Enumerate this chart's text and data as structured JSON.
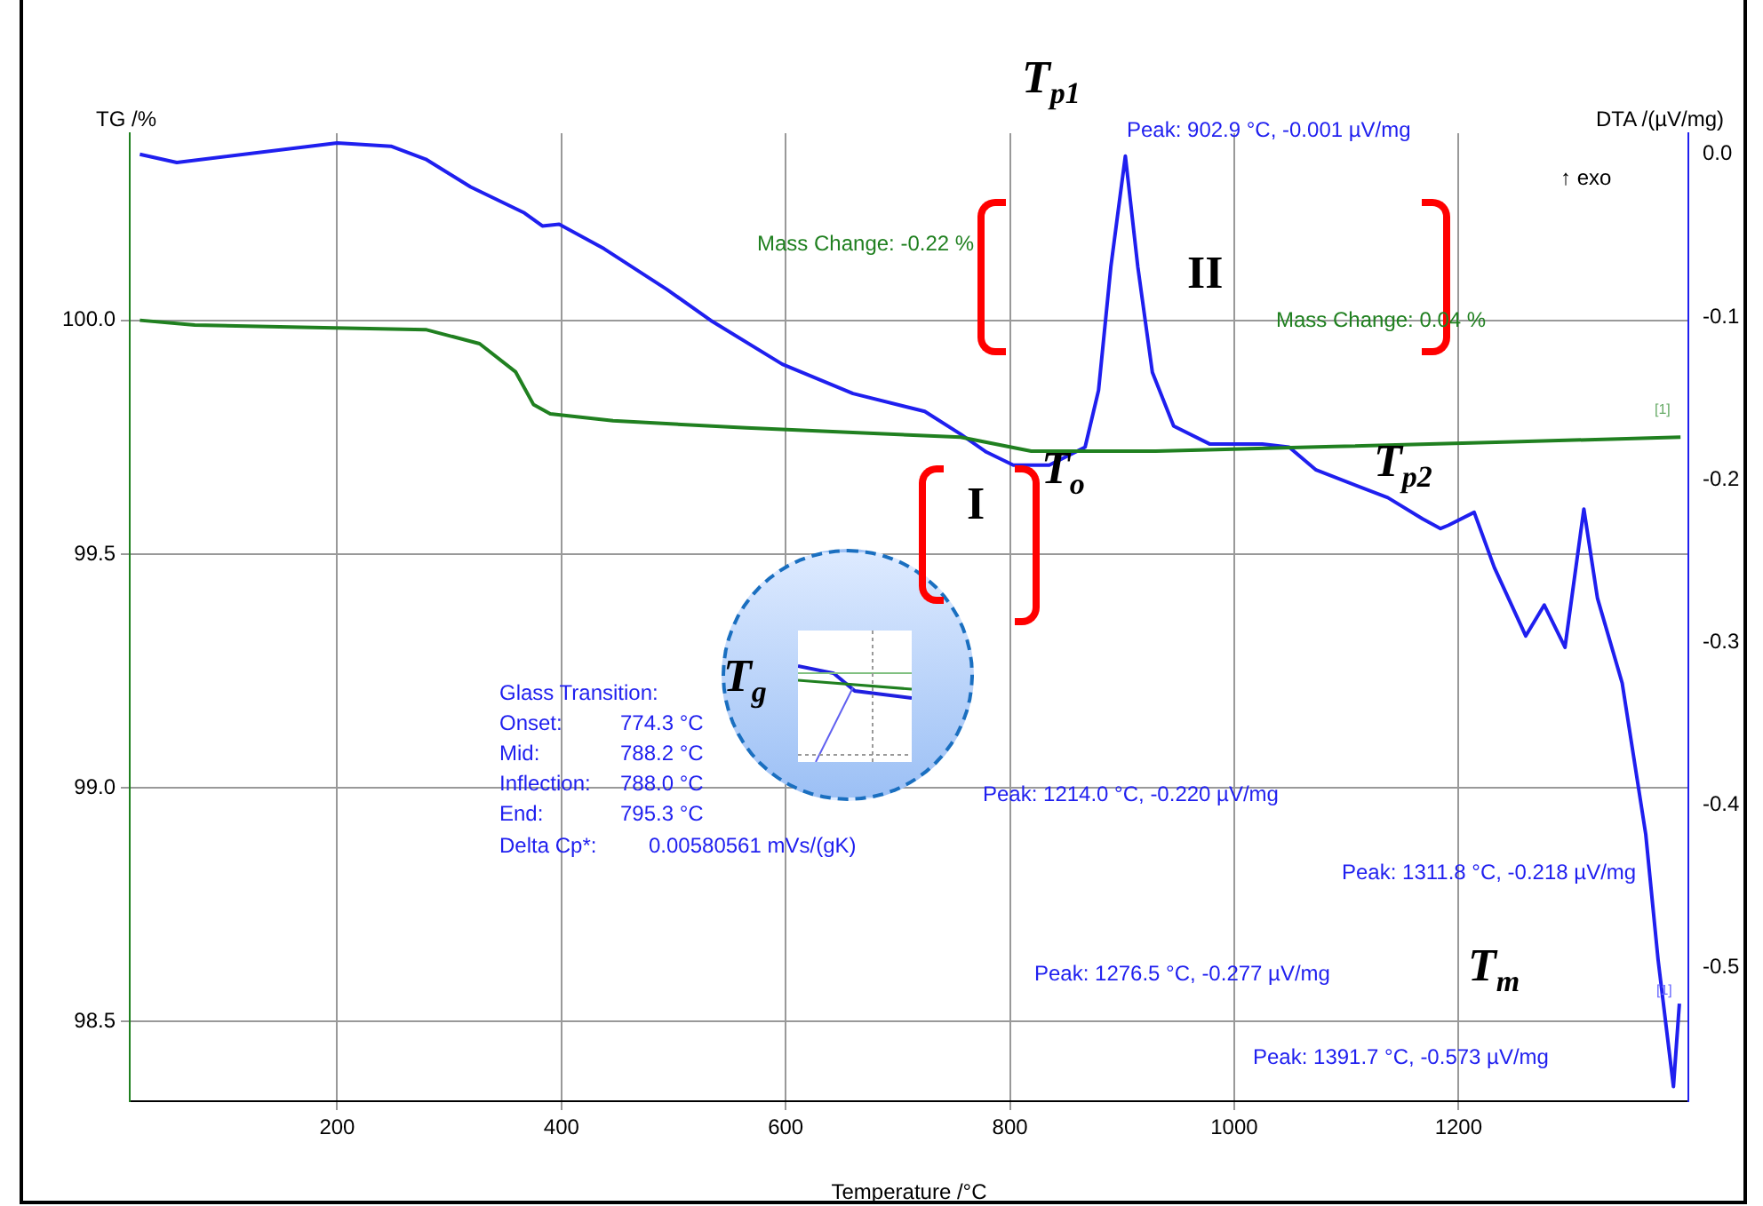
{
  "chart_data": {
    "type": "line",
    "xlabel": "Temperature /°C",
    "ylabel": "TG /%",
    "y2label": "DTA /(µV/mg)",
    "xlim": [
      15,
      1405
    ],
    "xticks": [
      200,
      400,
      600,
      800,
      1000,
      1200
    ],
    "ylim": [
      98.33,
      100.4
    ],
    "yticks": [
      {
        "value": 98.5,
        "label": "98.5"
      },
      {
        "value": 99,
        "label": "99.0"
      },
      {
        "value": 99.5,
        "label": "99.5"
      },
      {
        "value": 100,
        "label": "100.0"
      }
    ],
    "y2lim": [
      -0.582,
      0.013
    ],
    "y2ticks": [
      {
        "value": -0.5,
        "label": "-0.5"
      },
      {
        "value": -0.4,
        "label": "-0.4"
      },
      {
        "value": -0.3,
        "label": "-0.3"
      },
      {
        "value": -0.2,
        "label": "-0.2"
      },
      {
        "value": -0.1,
        "label": "-0.1"
      },
      {
        "value": 0,
        "label": "0.0"
      }
    ],
    "grid": true,
    "legend": false,
    "marker": "none",
    "line_style": "solid",
    "series": [
      {
        "color": "#208020",
        "x": [
          24,
          73,
          168,
          279,
          327,
          359,
          375,
          390,
          446,
          565,
          660,
          756,
          819,
          930,
          1089,
          1248,
          1398
        ],
        "values": [
          100.0,
          99.99,
          99.985,
          99.98,
          99.95,
          99.89,
          99.82,
          99.8,
          99.785,
          99.77,
          99.76,
          99.75,
          99.72,
          99.72,
          99.73,
          99.74,
          99.75
        ]
      },
      {
        "color": "#1f1fef",
        "axis": "y2",
        "x": [
          24,
          57,
          200,
          248,
          279,
          319,
          367,
          383,
          398,
          438,
          494,
          533,
          597,
          660,
          724,
          756,
          779,
          803,
          835,
          867,
          879,
          890,
          902.9,
          914,
          927,
          946,
          978,
          1025,
          1049,
          1073,
          1137,
          1168,
          1184,
          1191,
          1214,
          1232,
          1260,
          1276.5,
          1295,
          1311.8,
          1324,
          1346,
          1367,
          1378,
          1391.7,
          1397
        ],
        "values": [
          0.0,
          -0.005,
          0.007,
          0.005,
          -0.003,
          -0.02,
          -0.036,
          -0.044,
          -0.043,
          -0.058,
          -0.083,
          -0.102,
          -0.129,
          -0.147,
          -0.158,
          -0.172,
          -0.183,
          -0.191,
          -0.191,
          -0.18,
          -0.145,
          -0.069,
          -0.001,
          -0.069,
          -0.134,
          -0.167,
          -0.178,
          -0.178,
          -0.18,
          -0.194,
          -0.211,
          -0.224,
          -0.23,
          -0.228,
          -0.22,
          -0.254,
          -0.296,
          -0.277,
          -0.303,
          -0.218,
          -0.273,
          -0.325,
          -0.418,
          -0.495,
          -0.573,
          -0.522
        ]
      }
    ],
    "annotations": [
      "Mass Change: -0.22 %",
      "Peak: 902.9 °C, -0.001 µV/mg",
      "↑ exo",
      "Mass Change: 0.04 %",
      "Glass Transition:",
      "Onset:",
      "774.3 °C",
      "Mid:",
      "788.2 °C",
      "Inflection:",
      "788.0 °C",
      "End:",
      "795.3 °C",
      "Delta Cp*:",
      "0.00580561 mVs/(gK)",
      "Peak: 1214.0 °C, -0.220 µV/mg",
      "Peak: 1311.8 °C, -0.218 µV/mg",
      "Peak: 1276.5 °C, -0.277 µV/mg",
      "Peak: 1391.7 °C, -0.573 µV/mg",
      "T$_{p1}$",
      "II",
      "T$_{o}$",
      "I",
      "T$_{p2}$",
      "T$_{g}$",
      "T$_{m}$",
      "[1]",
      "[1]"
    ]
  }
}
